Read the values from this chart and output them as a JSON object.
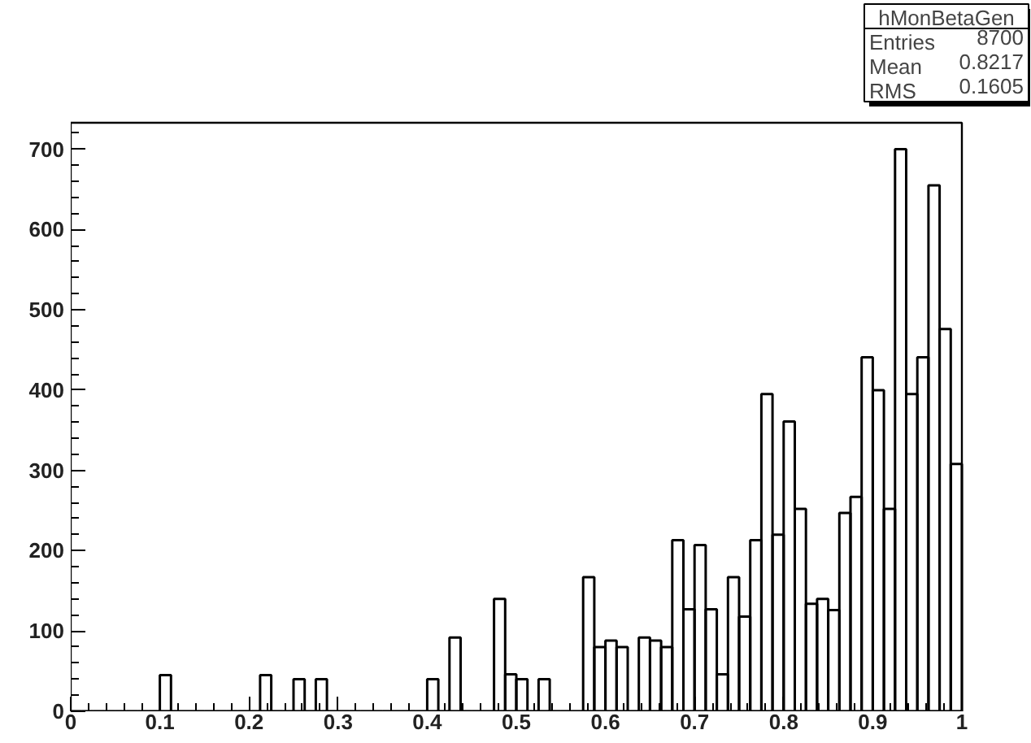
{
  "chart_data": {
    "type": "histogram",
    "title": "hMonBetaGen",
    "bins": [
      0,
      0.0125,
      0.025,
      0.0375,
      0.05,
      0.0625,
      0.075,
      0.0875,
      0.1,
      0.1125,
      0.125,
      0.1375,
      0.15,
      0.1625,
      0.175,
      0.1875,
      0.2,
      0.2125,
      0.225,
      0.2375,
      0.25,
      0.2625,
      0.275,
      0.2875,
      0.3,
      0.3125,
      0.325,
      0.3375,
      0.35,
      0.3625,
      0.375,
      0.3875,
      0.4,
      0.4125,
      0.425,
      0.4375,
      0.45,
      0.4625,
      0.475,
      0.4875,
      0.5,
      0.5125,
      0.525,
      0.5375,
      0.55,
      0.5625,
      0.575,
      0.5875,
      0.6,
      0.6125,
      0.625,
      0.6375,
      0.65,
      0.6625,
      0.675,
      0.6875,
      0.7,
      0.7125,
      0.725,
      0.7375,
      0.75,
      0.7625,
      0.775,
      0.7875,
      0.8,
      0.8125,
      0.825,
      0.8375,
      0.85,
      0.8625,
      0.875,
      0.8875,
      0.9,
      0.9125,
      0.925,
      0.9375,
      0.95,
      0.9625,
      0.975,
      0.9875,
      1
    ],
    "values": [
      0,
      0,
      0,
      0,
      0,
      0,
      0,
      0,
      45,
      0,
      0,
      0,
      0,
      0,
      0,
      0,
      0,
      45,
      0,
      0,
      40,
      0,
      40,
      0,
      0,
      0,
      0,
      0,
      0,
      0,
      0,
      0,
      40,
      0,
      92,
      0,
      0,
      0,
      140,
      46,
      40,
      0,
      40,
      0,
      0,
      0,
      167,
      80,
      88,
      80,
      0,
      92,
      88,
      80,
      213,
      127,
      207,
      127,
      46,
      167,
      118,
      213,
      395,
      220,
      361,
      252,
      134,
      140,
      126,
      247,
      267,
      441,
      400,
      252,
      700,
      395,
      441,
      655,
      476,
      308
    ],
    "color": "#000000",
    "xlim": [
      0,
      1
    ],
    "xticks": [
      0,
      0.1,
      0.2,
      0.3,
      0.4,
      0.5,
      0.6,
      0.7,
      0.8,
      0.9,
      1
    ],
    "ylim": [
      0,
      733
    ],
    "yticks": [
      0,
      100,
      200,
      300,
      400,
      500,
      600,
      700
    ],
    "grid": false,
    "annotations": [
      "Entries",
      "8700",
      "Mean",
      "0.8217",
      "RMS",
      "0.1605"
    ]
  }
}
